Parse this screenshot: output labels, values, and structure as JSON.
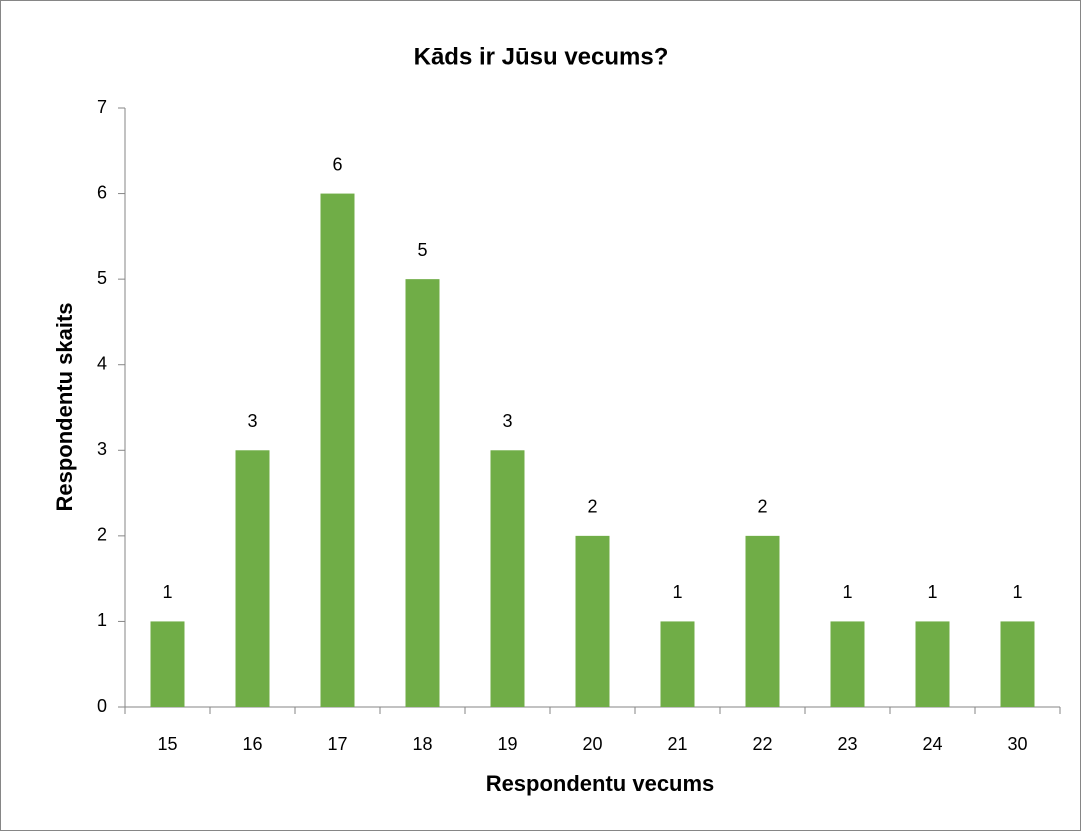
{
  "chart_data": {
    "type": "bar",
    "title": "Kāds ir Jūsu vecums?",
    "x_label": "Respondentu vecums",
    "y_label": "Respondentu skaits",
    "categories": [
      "15",
      "16",
      "17",
      "18",
      "19",
      "20",
      "21",
      "22",
      "23",
      "24",
      "30"
    ],
    "values": [
      1,
      3,
      6,
      5,
      3,
      2,
      1,
      2,
      1,
      1,
      1
    ],
    "color": "#70ad47",
    "ylim": [
      0,
      7
    ],
    "yticks": [
      0,
      1,
      2,
      3,
      4,
      5,
      6,
      7
    ],
    "grid": false,
    "data_labels": true
  }
}
